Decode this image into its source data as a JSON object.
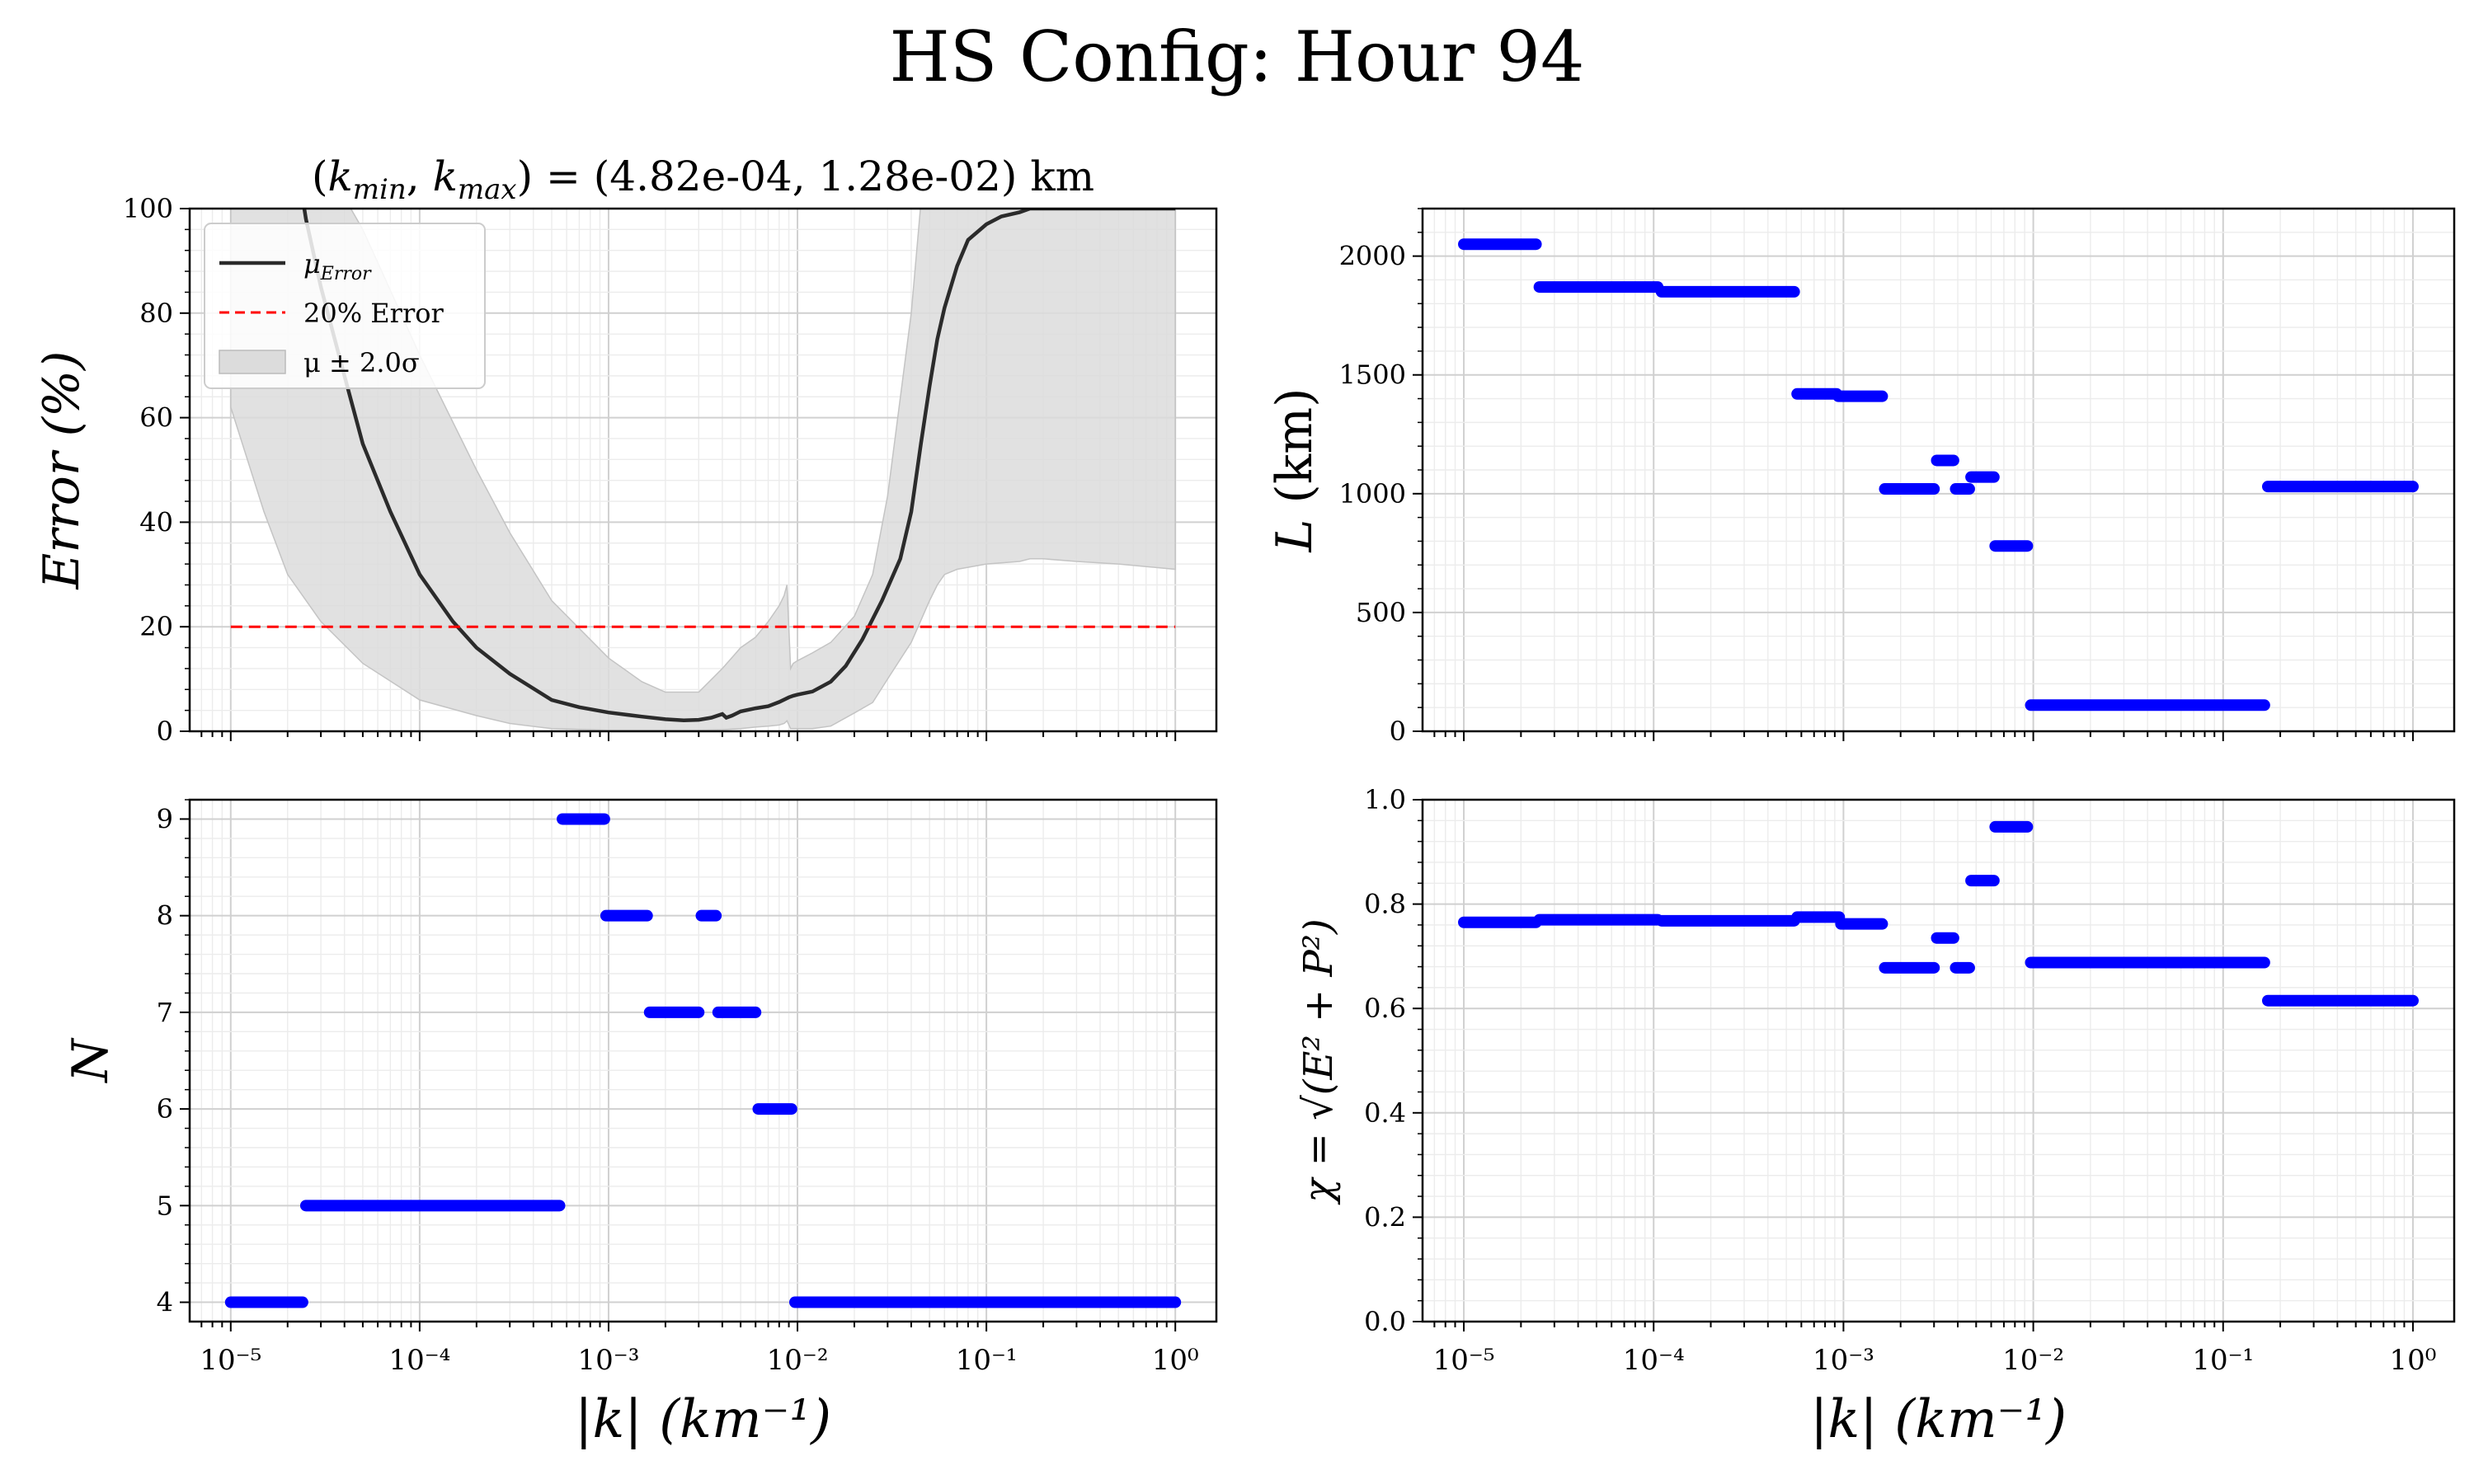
{
  "figure": {
    "title": "HS Config: Hour 94"
  },
  "chart_data": [
    {
      "id": "error",
      "type": "line",
      "title": "(k_min, k_max) = (4.82e-04, 1.28e-02) km",
      "title_parts": {
        "open": "(",
        "k1": "k",
        "k1_sub": "min",
        "sep": ", ",
        "k2": "k",
        "k2_sub": "max",
        "mid": ") = (4.82e-04, 1.28e-02) km"
      },
      "xlabel": "|k| (km⁻¹)",
      "ylabel": "Error (%)",
      "xscale": "log",
      "xlim": [
        1e-05,
        1
      ],
      "ylim": [
        0,
        100
      ],
      "yticks": [
        0,
        20,
        40,
        60,
        80,
        100
      ],
      "xtick_labels": [
        "10⁻⁵",
        "10⁻⁴",
        "10⁻³",
        "10⁻²",
        "10⁻¹",
        "10⁰"
      ],
      "show_xtick_labels": false,
      "grid": true,
      "legend": {
        "placement": "top-left",
        "entries": [
          {
            "label_main": "μ",
            "label_sub": "Error",
            "style": "line",
            "color": "#2b2b2b"
          },
          {
            "label_main": "20% Error",
            "label_sub": "",
            "style": "dashed",
            "color": "#ff0000"
          },
          {
            "label_main": "μ ± 2.0σ",
            "label_sub": "",
            "style": "band",
            "color": "#dcdcdc"
          }
        ]
      },
      "series": [
        {
          "name": "μ_Error",
          "color": "#2b2b2b",
          "x": [
            2e-05,
            2.5e-05,
            3e-05,
            4e-05,
            5e-05,
            7e-05,
            0.0001,
            0.00015,
            0.0002,
            0.0003,
            0.0005,
            0.0007,
            0.001,
            0.0015,
            0.002,
            0.0025,
            0.003,
            0.0035,
            0.004,
            0.0042,
            0.0045,
            0.005,
            0.006,
            0.007,
            0.008,
            0.009,
            0.0095,
            0.01,
            0.012,
            0.015,
            0.018,
            0.022,
            0.028,
            0.035,
            0.04,
            0.045,
            0.05,
            0.055,
            0.06,
            0.07,
            0.08,
            0.1,
            0.12,
            0.15,
            0.17,
            0.2,
            1.0
          ],
          "y": [
            120,
            98,
            85,
            68,
            55,
            42,
            30,
            21,
            16,
            11,
            6,
            4.6,
            3.6,
            2.8,
            2.3,
            2.1,
            2.2,
            2.6,
            3.3,
            2.6,
            3.0,
            3.8,
            4.4,
            4.8,
            5.6,
            6.5,
            6.8,
            7.0,
            7.6,
            9.5,
            12.5,
            17.5,
            25,
            33,
            42,
            55,
            66,
            75,
            81,
            89,
            94,
            97,
            98.5,
            99.3,
            100,
            100,
            100
          ]
        },
        {
          "name": "20% Error",
          "color": "#ff0000",
          "dashed": true,
          "x": [
            1e-05,
            1.0
          ],
          "y": [
            20,
            20
          ]
        }
      ],
      "band": {
        "name": "μ ± 2.0σ",
        "color": "#dcdcdc",
        "x": [
          1e-05,
          1.5e-05,
          2e-05,
          3e-05,
          5e-05,
          0.0001,
          0.0002,
          0.0003,
          0.0005,
          0.001,
          0.0015,
          0.002,
          0.003,
          0.004,
          0.005,
          0.006,
          0.007,
          0.008,
          0.0085,
          0.0088,
          0.0092,
          0.0095,
          0.01,
          0.012,
          0.015,
          0.02,
          0.025,
          0.03,
          0.04,
          0.05,
          0.055,
          0.06,
          0.07,
          0.1,
          0.15,
          0.17,
          0.2,
          0.3,
          0.5,
          1.0
        ],
        "upper": [
          120,
          120,
          120,
          110,
          96,
          72,
          50,
          38,
          25,
          14,
          9.5,
          7.5,
          7.5,
          12,
          16,
          18,
          21,
          24,
          26,
          28,
          12,
          13,
          13.5,
          15,
          17,
          22,
          30,
          45,
          80,
          120,
          120,
          120,
          120,
          120,
          120,
          120,
          120,
          120,
          120,
          120
        ],
        "lower": [
          62,
          42,
          30,
          21,
          13,
          6,
          3,
          1.5,
          0.5,
          0.2,
          0.2,
          0.2,
          0.2,
          0.3,
          0.5,
          0.8,
          1.0,
          1.2,
          1.5,
          2.0,
          0.5,
          0.5,
          0.5,
          0.5,
          1.0,
          3.5,
          5.5,
          10,
          17,
          25,
          28,
          30,
          31,
          32,
          32.5,
          33,
          33,
          32.5,
          32,
          31
        ]
      }
    },
    {
      "id": "L",
      "type": "scatter",
      "ylabel": "L (km)",
      "ylabel_parts": {
        "var": "L",
        "rest": " (km)"
      },
      "xscale": "log",
      "xlim": [
        1e-05,
        1
      ],
      "ylim": [
        0,
        2200
      ],
      "yticks": [
        0,
        500,
        1000,
        1500,
        2000
      ],
      "xtick_labels": [
        "10⁻⁵",
        "10⁻⁴",
        "10⁻³",
        "10⁻²",
        "10⁻¹",
        "10⁰"
      ],
      "show_xtick_labels": false,
      "grid": true,
      "color": "#0000ff",
      "segments": [
        {
          "x0": 1e-05,
          "x1": 2.4e-05,
          "y": 2050
        },
        {
          "x0": 2.5e-05,
          "x1": 0.000105,
          "y": 1870
        },
        {
          "x0": 0.00011,
          "x1": 0.00055,
          "y": 1850
        },
        {
          "x0": 0.00057,
          "x1": 0.00092,
          "y": 1420
        },
        {
          "x0": 0.00094,
          "x1": 0.0016,
          "y": 1410
        },
        {
          "x0": 0.00165,
          "x1": 0.003,
          "y": 1020
        },
        {
          "x0": 0.0031,
          "x1": 0.0038,
          "y": 1140
        },
        {
          "x0": 0.0039,
          "x1": 0.0046,
          "y": 1020
        },
        {
          "x0": 0.0047,
          "x1": 0.0062,
          "y": 1070
        },
        {
          "x0": 0.0063,
          "x1": 0.0093,
          "y": 780
        },
        {
          "x0": 0.0097,
          "x1": 0.165,
          "y": 110
        },
        {
          "x0": 0.172,
          "x1": 1.0,
          "y": 1030
        }
      ]
    },
    {
      "id": "N",
      "type": "scatter",
      "xlabel": "|k| (km⁻¹)",
      "ylabel": "N",
      "xscale": "log",
      "xlim": [
        1e-05,
        1
      ],
      "ylim": [
        3.8,
        9.2
      ],
      "yticks": [
        4,
        5,
        6,
        7,
        8,
        9
      ],
      "xtick_labels": [
        "10⁻⁵",
        "10⁻⁴",
        "10⁻³",
        "10⁻²",
        "10⁻¹",
        "10⁰"
      ],
      "show_xtick_labels": true,
      "grid": true,
      "color": "#0000ff",
      "segments": [
        {
          "x0": 1e-05,
          "x1": 2.4e-05,
          "y": 4
        },
        {
          "x0": 2.5e-05,
          "x1": 0.00055,
          "y": 5
        },
        {
          "x0": 0.00057,
          "x1": 0.00095,
          "y": 9
        },
        {
          "x0": 0.00097,
          "x1": 0.0016,
          "y": 8
        },
        {
          "x0": 0.00165,
          "x1": 0.003,
          "y": 7
        },
        {
          "x0": 0.0031,
          "x1": 0.0037,
          "y": 8
        },
        {
          "x0": 0.0038,
          "x1": 0.006,
          "y": 7
        },
        {
          "x0": 0.0062,
          "x1": 0.0093,
          "y": 6
        },
        {
          "x0": 0.0097,
          "x1": 1.0,
          "y": 4
        }
      ]
    },
    {
      "id": "chi",
      "type": "scatter",
      "xlabel": "|k| (km⁻¹)",
      "ylabel": "χ = √(E² + P²)",
      "xscale": "log",
      "xlim": [
        1e-05,
        1
      ],
      "ylim": [
        0,
        1.0
      ],
      "yticks": [
        0.0,
        0.2,
        0.4,
        0.6,
        0.8,
        1.0
      ],
      "ytick_labels": [
        "0.0",
        "0.2",
        "0.4",
        "0.6",
        "0.8",
        "1.0"
      ],
      "xtick_labels": [
        "10⁻⁵",
        "10⁻⁴",
        "10⁻³",
        "10⁻²",
        "10⁻¹",
        "10⁰"
      ],
      "show_xtick_labels": true,
      "grid": true,
      "color": "#0000ff",
      "segments": [
        {
          "x0": 1e-05,
          "x1": 2.4e-05,
          "y": 0.765
        },
        {
          "x0": 2.5e-05,
          "x1": 0.000105,
          "y": 0.77
        },
        {
          "x0": 0.00011,
          "x1": 0.00055,
          "y": 0.768
        },
        {
          "x0": 0.00057,
          "x1": 0.00095,
          "y": 0.775
        },
        {
          "x0": 0.00097,
          "x1": 0.0016,
          "y": 0.762
        },
        {
          "x0": 0.00165,
          "x1": 0.003,
          "y": 0.678
        },
        {
          "x0": 0.0031,
          "x1": 0.0038,
          "y": 0.735
        },
        {
          "x0": 0.0039,
          "x1": 0.0046,
          "y": 0.678
        },
        {
          "x0": 0.0047,
          "x1": 0.0062,
          "y": 0.845
        },
        {
          "x0": 0.0063,
          "x1": 0.0093,
          "y": 0.948
        },
        {
          "x0": 0.0097,
          "x1": 0.165,
          "y": 0.688
        },
        {
          "x0": 0.172,
          "x1": 1.0,
          "y": 0.615
        }
      ]
    }
  ]
}
